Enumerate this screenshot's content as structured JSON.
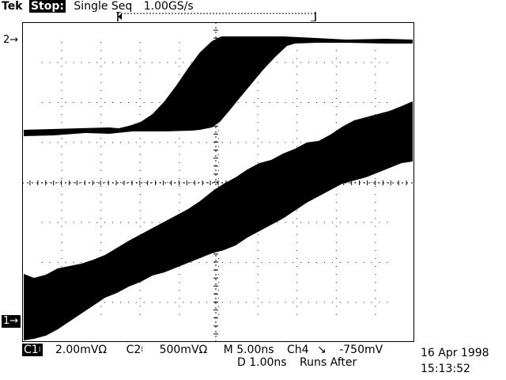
{
  "header": {
    "brand": "Tek",
    "state": "Stop:",
    "mode": "Single Seq",
    "sample_rate": "1.00GS/s"
  },
  "markers": {
    "ch2": "2→",
    "ch1": "1→"
  },
  "readout": {
    "ch1_label": "C1",
    "ch1_scale": "2.00mVΩ",
    "ch2_label": "C2",
    "ch2_scale": "500mVΩ",
    "timebase": "M 5.00ns",
    "trigger_source": "Ch4",
    "trigger_level": "-750mV",
    "delay": "D 1.00ns",
    "runs_after": "Runs After"
  },
  "datetime": {
    "date": "16 Apr 1998",
    "time": "15:13:52"
  }
}
